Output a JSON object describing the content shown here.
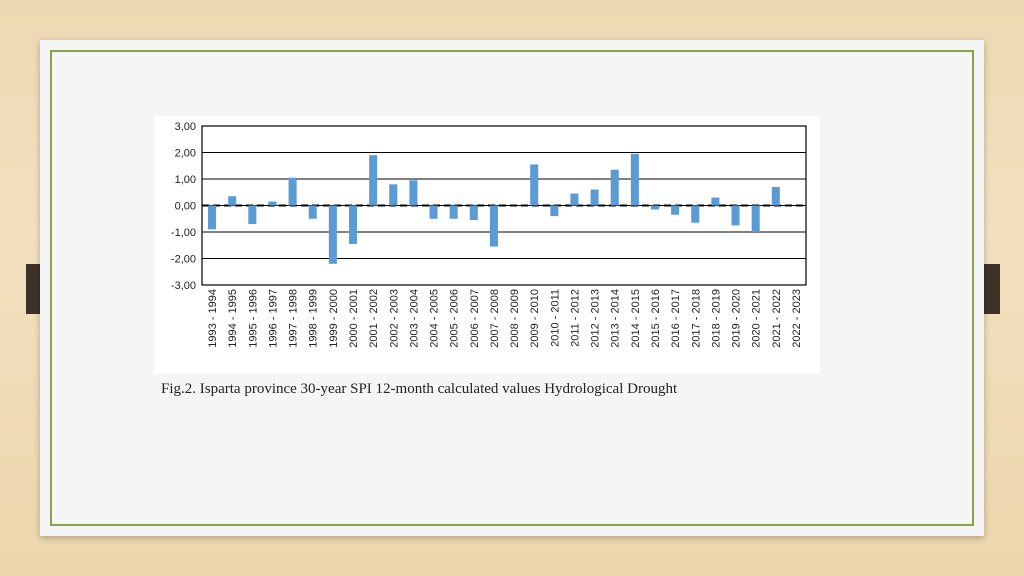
{
  "caption": "Fig.2. Isparta province 30-year SPI 12-month calculated values Hydrological Drought",
  "colors": {
    "bar": "#5b9bd5",
    "grid": "#000000",
    "frame": "#8aa24a",
    "tab": "#3e3128"
  },
  "chart_data": {
    "type": "bar",
    "title": "",
    "xlabel": "",
    "ylabel": "",
    "ylim": [
      -3,
      3
    ],
    "yticks": [
      "3,00",
      "2,00",
      "1,00",
      "0,00",
      "-1,00",
      "-2,00",
      "-3,00"
    ],
    "grid": true,
    "categories": [
      "1993 - 1994",
      "1994 - 1995",
      "1995 - 1996",
      "1996 - 1997",
      "1997 - 1998",
      "1998 - 1999",
      "1999 - 2000",
      "2000 - 2001",
      "2001 - 2002",
      "2002 - 2003",
      "2003 - 2004",
      "2004 - 2005",
      "2005 - 2006",
      "2006 - 2007",
      "2007 - 2008",
      "2008 - 2009",
      "2009 - 2010",
      "2010 - 2011",
      "2011 - 2012",
      "2012 - 2013",
      "2013 - 2014",
      "2014 - 2015",
      "2015 - 2016",
      "2016 - 2017",
      "2017 - 2018",
      "2018 - 2019",
      "2019 - 2020",
      "2020 - 2021",
      "2021 - 2022",
      "2022 - 2023"
    ],
    "values": [
      -0.9,
      0.35,
      -0.7,
      0.15,
      1.05,
      -0.5,
      -2.2,
      -1.45,
      1.9,
      0.8,
      0.95,
      -0.5,
      -0.5,
      -0.55,
      -1.55,
      0.0,
      1.55,
      -0.4,
      0.45,
      0.6,
      1.35,
      1.95,
      -0.15,
      -0.35,
      -0.65,
      0.3,
      -0.75,
      -1.0,
      0.7,
      0.0
    ]
  }
}
